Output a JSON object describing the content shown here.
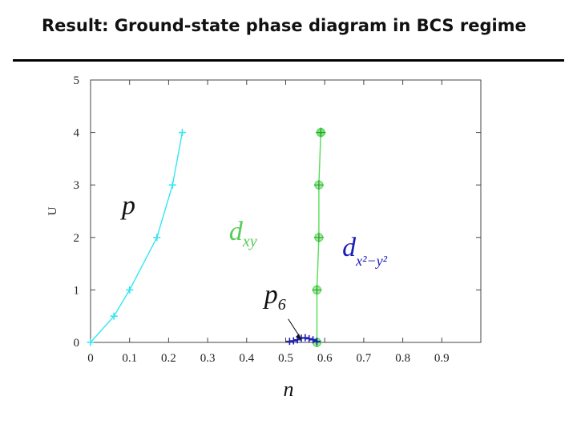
{
  "slide": {
    "title": "Result: Ground-state phase diagram in BCS regime"
  },
  "chart_data": {
    "type": "line",
    "xlabel": "n",
    "ylabel": "U",
    "xlim": [
      0,
      1.0
    ],
    "ylim": [
      0,
      5
    ],
    "x_ticks": [
      "0",
      "0.1",
      "0.2",
      "0.3",
      "0.4",
      "0.5",
      "0.6",
      "0.7",
      "0.8",
      "0.9"
    ],
    "x_tick_values": [
      0,
      0.1,
      0.2,
      0.3,
      0.4,
      0.5,
      0.6,
      0.7,
      0.8,
      0.9
    ],
    "y_ticks": [
      "0",
      "1",
      "2",
      "3",
      "4",
      "5"
    ],
    "y_tick_values": [
      0,
      1,
      2,
      3,
      4,
      5
    ],
    "grid": false,
    "series": [
      {
        "color": "#33e6f2",
        "marker": "plus",
        "x": [
          0,
          0.06,
          0.1,
          0.17,
          0.21,
          0.235
        ],
        "y": [
          0,
          0.5,
          1.0,
          2.0,
          3.0,
          4.0
        ]
      },
      {
        "color": "#55dd55",
        "marker": "circle-plus",
        "x": [
          0.58,
          0.58,
          0.585,
          0.585,
          0.59,
          0.59
        ],
        "y": [
          0,
          1.0,
          2.0,
          3.0,
          4.0,
          4.0
        ]
      },
      {
        "color": "#1f1fb0",
        "marker": "plus",
        "x": [
          0.51,
          0.52,
          0.53,
          0.54,
          0.55,
          0.56,
          0.57,
          0.58
        ],
        "y": [
          0.02,
          0.03,
          0.05,
          0.08,
          0.09,
          0.07,
          0.05,
          0.02
        ]
      }
    ],
    "annotations": [
      {
        "text": "p",
        "x": 0.08,
        "y": 2.45,
        "color": "#111111"
      },
      {
        "text": "d",
        "sub": "xy",
        "x": 0.355,
        "y": 1.95,
        "color": "#55cc55"
      },
      {
        "text": "d",
        "sub": "x²−y²",
        "x": 0.645,
        "y": 1.65,
        "color": "#1a1ab8"
      },
      {
        "text": "p",
        "sub": "6",
        "x": 0.445,
        "y": 0.75,
        "color": "#111111"
      }
    ]
  }
}
